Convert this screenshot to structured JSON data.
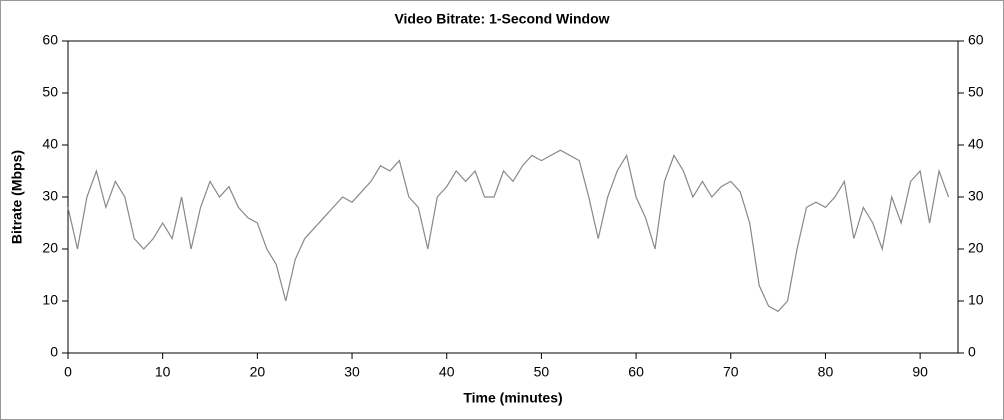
{
  "chart_data": {
    "type": "line",
    "title": "Video Bitrate: 1-Second Window",
    "x_label": "Time (minutes)",
    "y_label": "Bitrate (Mbps)",
    "x": [
      0,
      1,
      2,
      3,
      4,
      5,
      6,
      7,
      8,
      9,
      10,
      11,
      12,
      13,
      14,
      15,
      16,
      17,
      18,
      19,
      20,
      21,
      22,
      23,
      24,
      25,
      26,
      27,
      28,
      29,
      30,
      31,
      32,
      33,
      34,
      35,
      36,
      37,
      38,
      39,
      40,
      41,
      42,
      43,
      44,
      45,
      46,
      47,
      48,
      49,
      50,
      51,
      52,
      53,
      54,
      55,
      56,
      57,
      58,
      59,
      60,
      61,
      62,
      63,
      64,
      65,
      66,
      67,
      68,
      69,
      70,
      71,
      72,
      73,
      74,
      75,
      76,
      77,
      78,
      79,
      80,
      81,
      82,
      83,
      84,
      85,
      86,
      87,
      88,
      89,
      90,
      91,
      92,
      93
    ],
    "series": [
      {
        "name": "Bitrate",
        "color": "#888888",
        "values": [
          28,
          20,
          30,
          35,
          28,
          33,
          30,
          22,
          20,
          22,
          25,
          22,
          30,
          20,
          28,
          33,
          30,
          32,
          28,
          26,
          25,
          20,
          17,
          10,
          18,
          22,
          24,
          26,
          28,
          30,
          29,
          31,
          33,
          36,
          35,
          37,
          30,
          28,
          20,
          30,
          32,
          35,
          33,
          35,
          30,
          30,
          35,
          33,
          36,
          38,
          37,
          38,
          39,
          38,
          37,
          30,
          22,
          30,
          35,
          38,
          30,
          26,
          20,
          33,
          38,
          35,
          30,
          33,
          30,
          32,
          33,
          31,
          25,
          13,
          9,
          8,
          10,
          20,
          28,
          29,
          28,
          30,
          33,
          22,
          28,
          25,
          20,
          30,
          25,
          33,
          35,
          25,
          35,
          30
        ]
      }
    ],
    "xlim": [
      0,
      94
    ],
    "xticks": [
      0,
      10,
      20,
      30,
      40,
      50,
      60,
      70,
      80,
      90
    ],
    "ylim": [
      0,
      60
    ],
    "yticks": [
      0,
      10,
      20,
      30,
      40,
      50,
      60
    ],
    "y2lim": [
      0,
      60
    ],
    "y2ticks": [
      0,
      10,
      20,
      30,
      40,
      50,
      60
    ]
  }
}
